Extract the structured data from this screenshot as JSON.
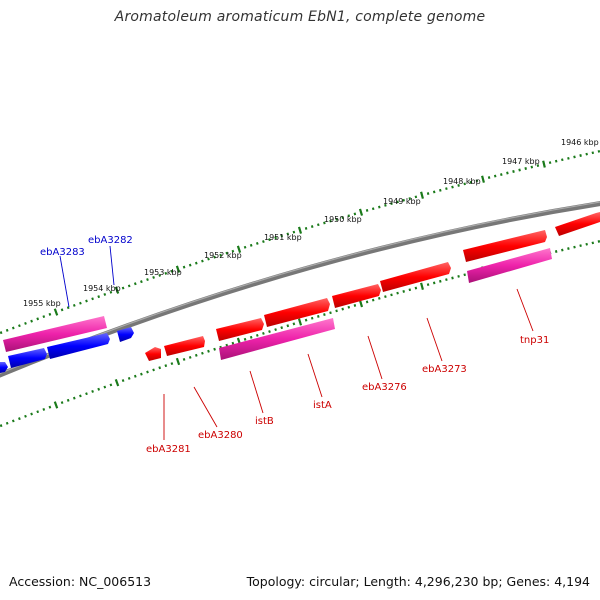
{
  "title": "Aromatoleum aromaticum EbN1, complete genome",
  "footer": {
    "accession": "Accession: NC_006513",
    "summary": "Topology: circular; Length: 4,296,230 bp; Genes: 4,194"
  },
  "colors": {
    "backbone": "#888888",
    "tick": "#1a7a1a",
    "gene_red": "#ff0000",
    "gene_blue": "#0000ff",
    "gene_pink": "#ee22aa",
    "label_red": "#cc0000",
    "label_blue": "#0000cc"
  },
  "kbp_labels": [
    "1946 kbp",
    "1947 kbp",
    "1948 kbp",
    "1949 kbp",
    "1950 kbp",
    "1951 kbp",
    "1952 kbp",
    "1953 kbp",
    "1954 kbp",
    "1955 kbp"
  ],
  "gene_labels": [
    "ebA3283",
    "ebA3282",
    "ebA3281",
    "ebA3280",
    "istB",
    "istA",
    "ebA3276",
    "ebA3273",
    "tnp31"
  ]
}
